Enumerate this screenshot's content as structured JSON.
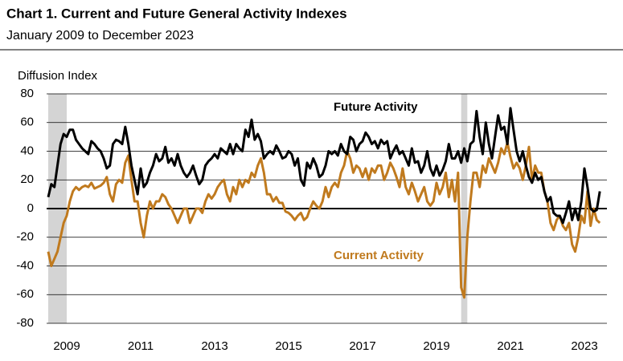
{
  "chart_data": {
    "type": "line",
    "title": "Chart 1. Current and Future General Activity Indexes",
    "subtitle": "January 2009 to December 2023",
    "y_label": "Diffusion Index",
    "annotations": [
      "Future Activity",
      "Current Activity"
    ],
    "xlim": [
      2009,
      2024
    ],
    "xticks": [
      {
        "value": 2009.5,
        "label": "2009"
      },
      {
        "value": 2011.5,
        "label": "2011"
      },
      {
        "value": 2013.5,
        "label": "2013"
      },
      {
        "value": 2015.5,
        "label": "2015"
      },
      {
        "value": 2017.5,
        "label": "2017"
      },
      {
        "value": 2019.5,
        "label": "2019"
      },
      {
        "value": 2021.5,
        "label": "2021"
      },
      {
        "value": 2023.5,
        "label": "2023"
      }
    ],
    "ylim": [
      -80,
      80
    ],
    "yticks": [
      -80,
      -60,
      -40,
      -20,
      0,
      20,
      40,
      60,
      80
    ],
    "grid": true,
    "shaded_regions": [
      [
        2009,
        2009.5
      ],
      [
        2020.167,
        2020.333
      ]
    ],
    "x": [
      2009,
      2009.083,
      2009.167,
      2009.25,
      2009.333,
      2009.417,
      2009.5,
      2009.583,
      2009.667,
      2009.75,
      2009.833,
      2009.917,
      2010,
      2010.083,
      2010.167,
      2010.25,
      2010.333,
      2010.417,
      2010.5,
      2010.583,
      2010.667,
      2010.75,
      2010.833,
      2010.917,
      2011,
      2011.083,
      2011.167,
      2011.25,
      2011.333,
      2011.417,
      2011.5,
      2011.583,
      2011.667,
      2011.75,
      2011.833,
      2011.917,
      2012,
      2012.083,
      2012.167,
      2012.25,
      2012.333,
      2012.417,
      2012.5,
      2012.583,
      2012.667,
      2012.75,
      2012.833,
      2012.917,
      2013,
      2013.083,
      2013.167,
      2013.25,
      2013.333,
      2013.417,
      2013.5,
      2013.583,
      2013.667,
      2013.75,
      2013.833,
      2013.917,
      2014,
      2014.083,
      2014.167,
      2014.25,
      2014.333,
      2014.417,
      2014.5,
      2014.583,
      2014.667,
      2014.75,
      2014.833,
      2014.917,
      2015,
      2015.083,
      2015.167,
      2015.25,
      2015.333,
      2015.417,
      2015.5,
      2015.583,
      2015.667,
      2015.75,
      2015.833,
      2015.917,
      2016,
      2016.083,
      2016.167,
      2016.25,
      2016.333,
      2016.417,
      2016.5,
      2016.583,
      2016.667,
      2016.75,
      2016.833,
      2016.917,
      2017,
      2017.083,
      2017.167,
      2017.25,
      2017.333,
      2017.417,
      2017.5,
      2017.583,
      2017.667,
      2017.75,
      2017.833,
      2017.917,
      2018,
      2018.083,
      2018.167,
      2018.25,
      2018.333,
      2018.417,
      2018.5,
      2018.583,
      2018.667,
      2018.75,
      2018.833,
      2018.917,
      2019,
      2019.083,
      2019.167,
      2019.25,
      2019.333,
      2019.417,
      2019.5,
      2019.583,
      2019.667,
      2019.75,
      2019.833,
      2019.917,
      2020,
      2020.083,
      2020.167,
      2020.25,
      2020.333,
      2020.417,
      2020.5,
      2020.583,
      2020.667,
      2020.75,
      2020.833,
      2020.917,
      2021,
      2021.083,
      2021.167,
      2021.25,
      2021.333,
      2021.417,
      2021.5,
      2021.583,
      2021.667,
      2021.75,
      2021.833,
      2021.917,
      2022,
      2022.083,
      2022.167,
      2022.25,
      2022.333,
      2022.417,
      2022.5,
      2022.583,
      2022.667,
      2022.75,
      2022.833,
      2022.917,
      2023,
      2023.083,
      2023.167,
      2023.25,
      2023.333,
      2023.417,
      2023.5,
      2023.583,
      2023.667,
      2023.75,
      2023.833,
      2023.917
    ],
    "series": [
      {
        "name": "Future Activity",
        "color": "#000000",
        "values": [
          8,
          17,
          15,
          30,
          45,
          52,
          50,
          55,
          55,
          48,
          45,
          42,
          40,
          38,
          47,
          45,
          42,
          40,
          35,
          28,
          30,
          45,
          48,
          47,
          45,
          57,
          45,
          30,
          20,
          10,
          28,
          15,
          18,
          25,
          30,
          38,
          33,
          35,
          43,
          32,
          35,
          30,
          38,
          30,
          25,
          22,
          25,
          30,
          23,
          17,
          20,
          30,
          33,
          35,
          38,
          35,
          42,
          40,
          38,
          45,
          38,
          45,
          42,
          40,
          55,
          50,
          62,
          48,
          52,
          47,
          35,
          38,
          40,
          38,
          44,
          40,
          35,
          36,
          40,
          38,
          30,
          35,
          20,
          16,
          32,
          28,
          35,
          30,
          22,
          24,
          30,
          40,
          38,
          40,
          37,
          45,
          40,
          38,
          50,
          48,
          40,
          45,
          47,
          53,
          50,
          45,
          47,
          42,
          48,
          45,
          47,
          35,
          40,
          44,
          38,
          40,
          35,
          30,
          42,
          32,
          33,
          25,
          30,
          40,
          28,
          23,
          30,
          23,
          27,
          33,
          45,
          35,
          35,
          40,
          32,
          42,
          33,
          45,
          47,
          68,
          50,
          38,
          60,
          45,
          35,
          50,
          65,
          55,
          57,
          45,
          70,
          55,
          40,
          33,
          40,
          30,
          22,
          18,
          25,
          20,
          22,
          12,
          5,
          8,
          -3,
          -5,
          -5,
          -10,
          -3,
          5,
          -8,
          0,
          -8,
          5,
          28,
          15,
          0,
          -2,
          -1,
          12
        ]
      },
      {
        "name": "Current Activity",
        "color": "#c07a1e",
        "values": [
          -30,
          -40,
          -35,
          -30,
          -20,
          -10,
          -5,
          5,
          12,
          15,
          13,
          15,
          16,
          15,
          18,
          14,
          15,
          16,
          18,
          22,
          10,
          5,
          17,
          20,
          18,
          32,
          37,
          20,
          5,
          5,
          -10,
          -20,
          -5,
          5,
          0,
          5,
          5,
          10,
          8,
          3,
          0,
          -5,
          -10,
          -5,
          0,
          0,
          -10,
          -5,
          0,
          0,
          -3,
          5,
          10,
          7,
          10,
          15,
          18,
          20,
          10,
          5,
          15,
          10,
          20,
          15,
          20,
          18,
          25,
          22,
          30,
          35,
          25,
          10,
          10,
          5,
          8,
          4,
          4,
          -2,
          -3,
          -5,
          -8,
          -5,
          -3,
          -8,
          -6,
          0,
          5,
          2,
          0,
          5,
          15,
          8,
          15,
          18,
          15,
          25,
          30,
          40,
          35,
          25,
          30,
          28,
          22,
          28,
          20,
          28,
          25,
          30,
          30,
          20,
          25,
          32,
          28,
          22,
          15,
          28,
          15,
          10,
          18,
          12,
          5,
          10,
          15,
          5,
          2,
          5,
          18,
          10,
          15,
          25,
          8,
          20,
          5,
          25,
          -55,
          -62,
          -20,
          5,
          25,
          25,
          15,
          30,
          25,
          35,
          30,
          25,
          32,
          42,
          38,
          46,
          36,
          28,
          32,
          28,
          20,
          30,
          43,
          20,
          30,
          25,
          25,
          12,
          5,
          -10,
          -15,
          -8,
          -5,
          -12,
          -15,
          -10,
          -25,
          -30,
          -20,
          -5,
          -10,
          12,
          -12,
          0,
          -8,
          -10
        ]
      }
    ]
  }
}
